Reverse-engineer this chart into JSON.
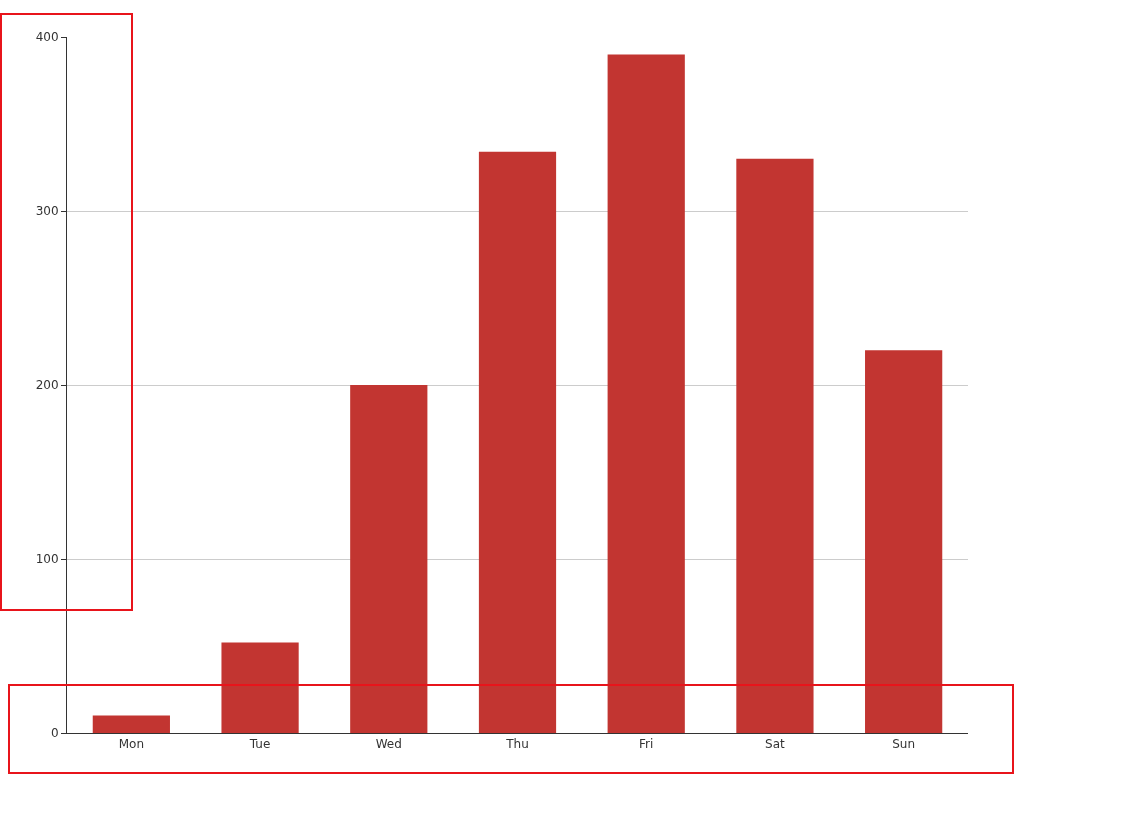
{
  "chart_data": {
    "type": "bar",
    "categories": [
      "Mon",
      "Tue",
      "Wed",
      "Thu",
      "Fri",
      "Sat",
      "Sun"
    ],
    "values": [
      10,
      52,
      200,
      334,
      390,
      330,
      220
    ],
    "color": "#c23531",
    "ylim": [
      0,
      400
    ],
    "yticks": [
      0,
      100,
      200,
      300,
      400
    ],
    "grid": "y"
  }
}
